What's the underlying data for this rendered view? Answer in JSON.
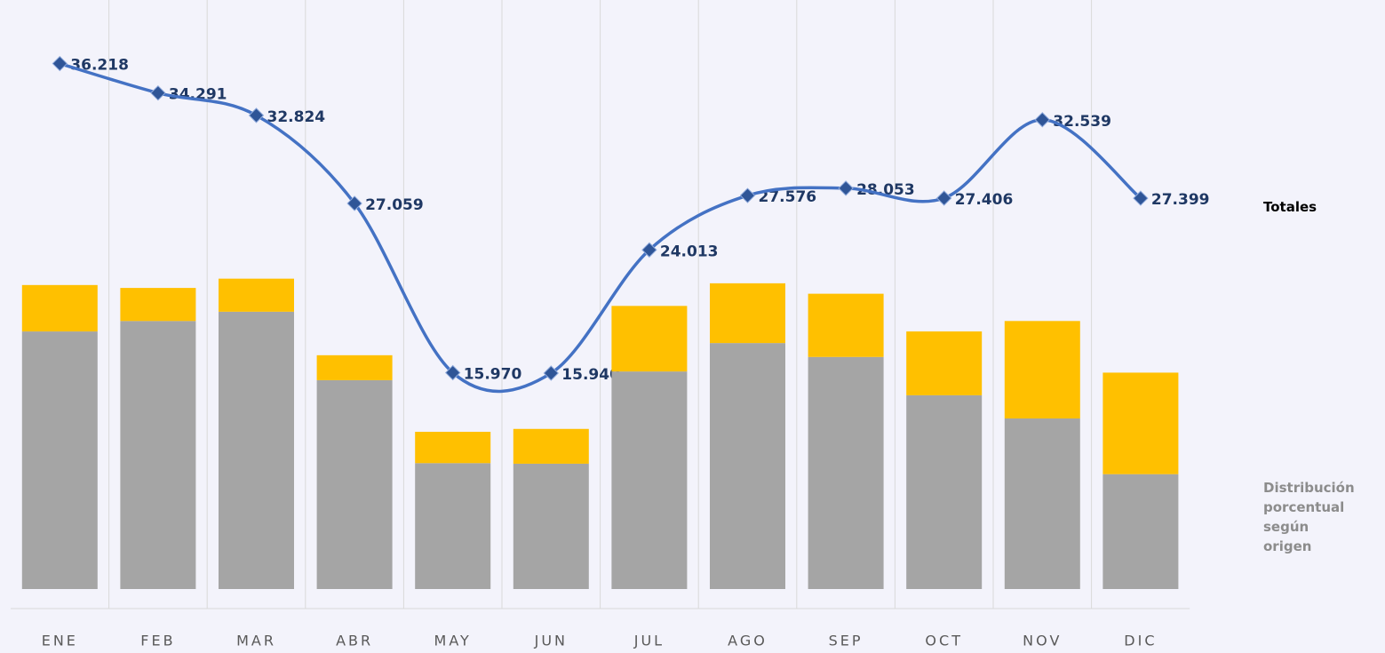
{
  "chart_data": {
    "type": "bar-line",
    "categories": [
      "ENE",
      "FEB",
      "MAR",
      "ABR",
      "MAY",
      "JUN",
      "JUL",
      "AGO",
      "SEP",
      "OCT",
      "NOV",
      "DIC"
    ],
    "bar_label": "Distribución porcentual según origen",
    "ylim": [
      1800,
      39800
    ],
    "y2lim": [
      0,
      100
    ],
    "series": [
      {
        "name": "Totales",
        "type": "line",
        "color": "#4472c4",
        "values": [
          36218,
          34291,
          32824,
          27059,
          15970,
          15940,
          24013,
          27576,
          28053,
          27406,
          32539,
          27399
        ],
        "value_labels": [
          "36.218",
          "34.291",
          "32.824",
          "27.059",
          "15.970",
          "15.940",
          "24.013",
          "27.576",
          "28.053",
          "27.406",
          "32.539",
          "27.399"
        ]
      },
      {
        "type": "bar",
        "axis": "y2",
        "color": "#a5a5a5",
        "values": [
          44.4,
          46.2,
          47.8,
          36.0,
          21.7,
          21.6,
          37.5,
          42.4,
          40.0,
          33.4,
          29.4,
          19.8
        ]
      },
      {
        "type": "bar",
        "axis": "y2",
        "color": "#ffc000",
        "values": [
          8.0,
          5.7,
          5.7,
          4.3,
          5.4,
          6.0,
          11.3,
          10.3,
          10.9,
          11.0,
          16.8,
          17.5
        ]
      }
    ]
  }
}
